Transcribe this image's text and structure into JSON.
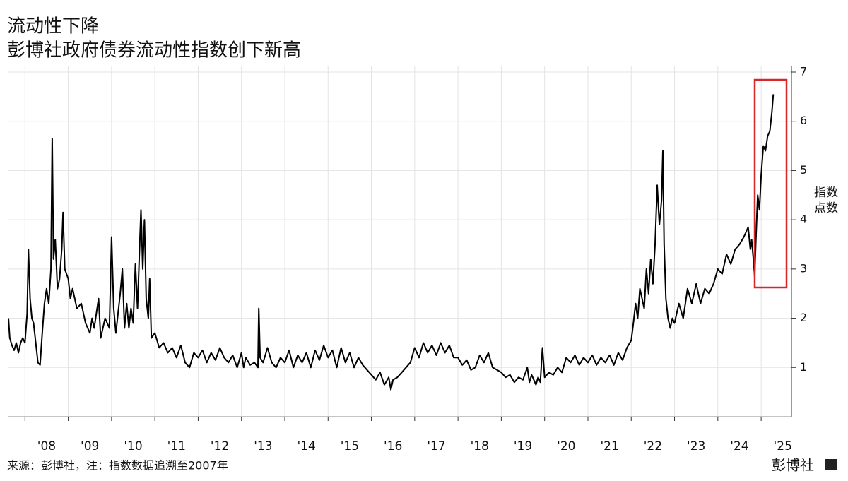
{
  "chart_data": {
    "type": "line",
    "title": "流动性下降",
    "subtitle": "彭博社政府债券流动性指数创下新高",
    "y_label": "指数点数",
    "source": "来源：彭博社，注：指数数据追溯至2007年",
    "brand": "彭博社",
    "color": "#000000",
    "grid": true,
    "xlim": [
      2007.62,
      2025.7
    ],
    "ylim": [
      0,
      7
    ],
    "yticks": [
      1,
      2,
      3,
      4,
      5,
      6,
      7
    ],
    "xticks": [
      {
        "value": 2008,
        "label": "'08"
      },
      {
        "value": 2009,
        "label": "'09"
      },
      {
        "value": 2010,
        "label": "'10"
      },
      {
        "value": 2011,
        "label": "'11"
      },
      {
        "value": 2012,
        "label": "'12"
      },
      {
        "value": 2013,
        "label": "'13"
      },
      {
        "value": 2014,
        "label": "'14"
      },
      {
        "value": 2015,
        "label": "'15"
      },
      {
        "value": 2016,
        "label": "'16"
      },
      {
        "value": 2017,
        "label": "'17"
      },
      {
        "value": 2018,
        "label": "'18"
      },
      {
        "value": 2019,
        "label": "'19"
      },
      {
        "value": 2020,
        "label": "'20"
      },
      {
        "value": 2021,
        "label": "'21"
      },
      {
        "value": 2022,
        "label": "'22"
      },
      {
        "value": 2023,
        "label": "'23"
      },
      {
        "value": 2024,
        "label": "'24"
      },
      {
        "value": 2025,
        "label": "'25"
      }
    ],
    "x": [
      2007.62,
      2007.65,
      2007.7,
      2007.75,
      2007.8,
      2007.85,
      2007.9,
      2007.95,
      2008.0,
      2008.05,
      2008.08,
      2008.12,
      2008.16,
      2008.2,
      2008.25,
      2008.3,
      2008.35,
      2008.4,
      2008.45,
      2008.5,
      2008.55,
      2008.6,
      2008.63,
      2008.66,
      2008.7,
      2008.75,
      2008.8,
      2008.85,
      2008.88,
      2008.92,
      2009.0,
      2009.05,
      2009.1,
      2009.2,
      2009.3,
      2009.4,
      2009.5,
      2009.55,
      2009.6,
      2009.7,
      2009.75,
      2009.85,
      2009.95,
      2010.0,
      2010.05,
      2010.1,
      2010.2,
      2010.25,
      2010.3,
      2010.35,
      2010.4,
      2010.45,
      2010.5,
      2010.55,
      2010.6,
      2010.65,
      2010.68,
      2010.72,
      2010.76,
      2010.8,
      2010.85,
      2010.88,
      2010.92,
      2011.0,
      2011.1,
      2011.2,
      2011.3,
      2011.4,
      2011.5,
      2011.6,
      2011.7,
      2011.8,
      2011.9,
      2012.0,
      2012.1,
      2012.2,
      2012.3,
      2012.4,
      2012.5,
      2012.6,
      2012.7,
      2012.8,
      2012.9,
      2013.0,
      2013.05,
      2013.1,
      2013.2,
      2013.3,
      2013.38,
      2013.4,
      2013.43,
      2013.5,
      2013.6,
      2013.7,
      2013.8,
      2013.9,
      2014.0,
      2014.1,
      2014.2,
      2014.3,
      2014.4,
      2014.5,
      2014.6,
      2014.7,
      2014.8,
      2014.9,
      2015.0,
      2015.1,
      2015.2,
      2015.3,
      2015.4,
      2015.5,
      2015.6,
      2015.7,
      2015.8,
      2015.9,
      2016.0,
      2016.1,
      2016.2,
      2016.3,
      2016.4,
      2016.45,
      2016.5,
      2016.6,
      2016.7,
      2016.8,
      2016.9,
      2017.0,
      2017.1,
      2017.2,
      2017.3,
      2017.4,
      2017.5,
      2017.6,
      2017.7,
      2017.8,
      2017.9,
      2018.0,
      2018.1,
      2018.2,
      2018.3,
      2018.4,
      2018.5,
      2018.6,
      2018.7,
      2018.8,
      2018.9,
      2019.0,
      2019.1,
      2019.2,
      2019.3,
      2019.4,
      2019.5,
      2019.6,
      2019.65,
      2019.7,
      2019.8,
      2019.85,
      2019.9,
      2019.95,
      2020.0,
      2020.1,
      2020.2,
      2020.3,
      2020.4,
      2020.5,
      2020.6,
      2020.7,
      2020.8,
      2020.9,
      2021.0,
      2021.1,
      2021.2,
      2021.3,
      2021.4,
      2021.5,
      2021.6,
      2021.7,
      2021.8,
      2021.9,
      2022.0,
      2022.05,
      2022.1,
      2022.15,
      2022.2,
      2022.3,
      2022.35,
      2022.4,
      2022.45,
      2022.5,
      2022.55,
      2022.6,
      2022.65,
      2022.7,
      2022.73,
      2022.76,
      2022.8,
      2022.85,
      2022.9,
      2022.95,
      2023.0,
      2023.1,
      2023.2,
      2023.3,
      2023.4,
      2023.5,
      2023.6,
      2023.7,
      2023.8,
      2023.9,
      2024.0,
      2024.1,
      2024.2,
      2024.3,
      2024.4,
      2024.5,
      2024.6,
      2024.65,
      2024.7,
      2024.75,
      2024.78,
      2024.82,
      2024.85,
      2024.88,
      2024.92,
      2024.96,
      2025.0,
      2025.05,
      2025.1,
      2025.15,
      2025.2,
      2025.25,
      2025.28
    ],
    "values": [
      2.0,
      1.6,
      1.45,
      1.35,
      1.5,
      1.3,
      1.5,
      1.6,
      1.5,
      2.1,
      3.4,
      2.4,
      2.0,
      1.9,
      1.5,
      1.1,
      1.05,
      1.7,
      2.3,
      2.6,
      2.3,
      3.0,
      5.65,
      3.2,
      3.6,
      2.6,
      2.8,
      3.4,
      4.15,
      3.0,
      2.8,
      2.4,
      2.6,
      2.2,
      2.3,
      1.9,
      1.7,
      2.0,
      1.8,
      2.4,
      1.6,
      2.0,
      1.8,
      3.65,
      2.2,
      1.7,
      2.5,
      3.0,
      1.8,
      2.3,
      1.8,
      2.2,
      1.9,
      3.1,
      2.2,
      3.5,
      4.2,
      3.0,
      4.0,
      2.4,
      2.0,
      2.8,
      1.6,
      1.7,
      1.4,
      1.5,
      1.3,
      1.4,
      1.2,
      1.45,
      1.1,
      1.0,
      1.3,
      1.2,
      1.35,
      1.1,
      1.3,
      1.15,
      1.4,
      1.2,
      1.1,
      1.25,
      1.0,
      1.3,
      1.0,
      1.2,
      1.05,
      1.1,
      1.0,
      2.2,
      1.2,
      1.1,
      1.4,
      1.1,
      1.0,
      1.2,
      1.1,
      1.35,
      1.0,
      1.25,
      1.1,
      1.3,
      1.0,
      1.35,
      1.15,
      1.45,
      1.2,
      1.35,
      1.0,
      1.4,
      1.1,
      1.3,
      1.0,
      1.2,
      1.05,
      0.95,
      0.85,
      0.75,
      0.9,
      0.65,
      0.8,
      0.55,
      0.75,
      0.8,
      0.9,
      1.0,
      1.1,
      1.4,
      1.2,
      1.5,
      1.3,
      1.45,
      1.25,
      1.5,
      1.3,
      1.45,
      1.2,
      1.2,
      1.05,
      1.15,
      0.95,
      1.0,
      1.25,
      1.1,
      1.3,
      1.0,
      0.95,
      0.9,
      0.8,
      0.85,
      0.7,
      0.8,
      0.75,
      1.0,
      0.7,
      0.85,
      0.65,
      0.8,
      0.7,
      1.4,
      0.8,
      0.9,
      0.85,
      1.0,
      0.9,
      1.2,
      1.1,
      1.25,
      1.05,
      1.2,
      1.1,
      1.25,
      1.05,
      1.2,
      1.1,
      1.25,
      1.05,
      1.3,
      1.15,
      1.4,
      1.55,
      1.9,
      2.3,
      2.0,
      2.6,
      2.2,
      3.0,
      2.5,
      3.2,
      2.7,
      3.5,
      4.7,
      3.9,
      4.4,
      5.4,
      3.5,
      2.4,
      2.0,
      1.8,
      2.0,
      1.9,
      2.3,
      2.0,
      2.6,
      2.3,
      2.7,
      2.3,
      2.6,
      2.5,
      2.7,
      3.0,
      2.9,
      3.3,
      3.1,
      3.4,
      3.5,
      3.65,
      3.75,
      3.85,
      3.4,
      3.6,
      3.2,
      2.85,
      3.6,
      4.5,
      4.2,
      4.9,
      5.5,
      5.4,
      5.7,
      5.8,
      6.2,
      6.55
    ]
  }
}
